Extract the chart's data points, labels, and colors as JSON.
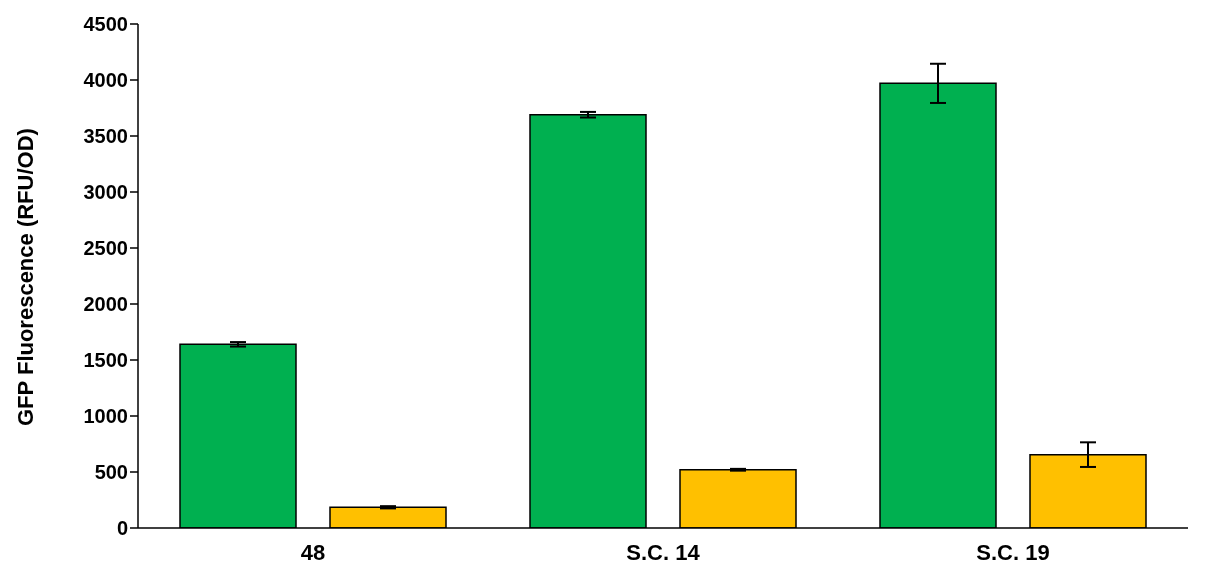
{
  "chart_data": {
    "type": "bar",
    "ylabel": "GFP Fluorescence (RFU/OD)",
    "categories": [
      "48",
      "S.C. 14",
      "S.C. 19"
    ],
    "series": [
      {
        "color": "#00b050",
        "values": [
          1640,
          3690,
          3970
        ],
        "errors": [
          20,
          25,
          175
        ]
      },
      {
        "color": "#ffc000",
        "values": [
          185,
          520,
          655
        ],
        "errors": [
          10,
          8,
          110
        ]
      }
    ],
    "ylim": [
      0,
      4500
    ],
    "yticks": [
      0,
      500,
      1000,
      1500,
      2000,
      2500,
      3000,
      3500,
      4000,
      4500
    ],
    "grid": false,
    "legend": false
  }
}
